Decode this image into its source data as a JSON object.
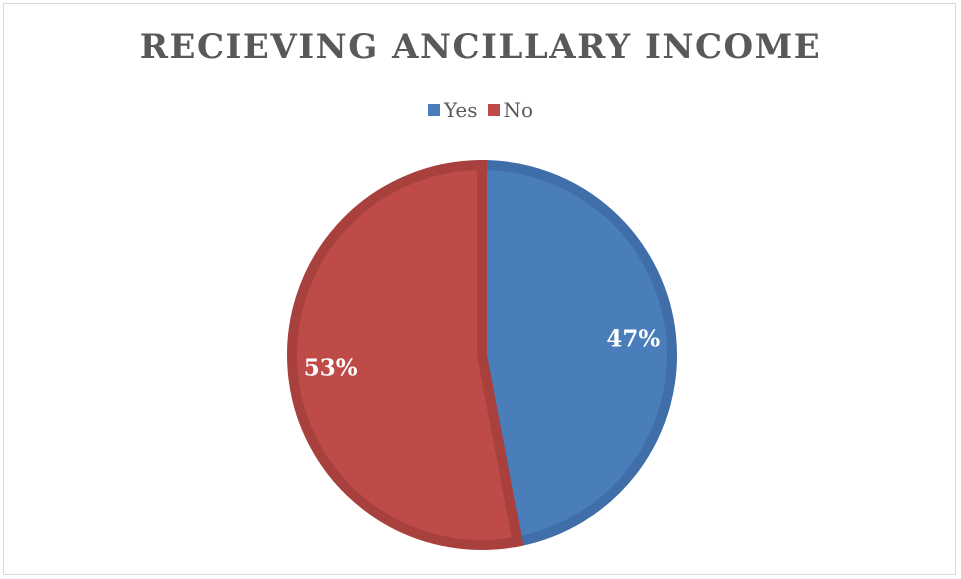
{
  "chart_data": {
    "type": "pie",
    "title": "RECIEVING ANCILLARY INCOME",
    "legend_position": "top",
    "categories": [
      "Yes",
      "No"
    ],
    "values": [
      47,
      53
    ],
    "data_labels": [
      "47%",
      "53%"
    ],
    "colors": [
      "#4a7ebb",
      "#be4b48"
    ],
    "border_colors": [
      "#3f6ea8",
      "#a8403d"
    ]
  }
}
